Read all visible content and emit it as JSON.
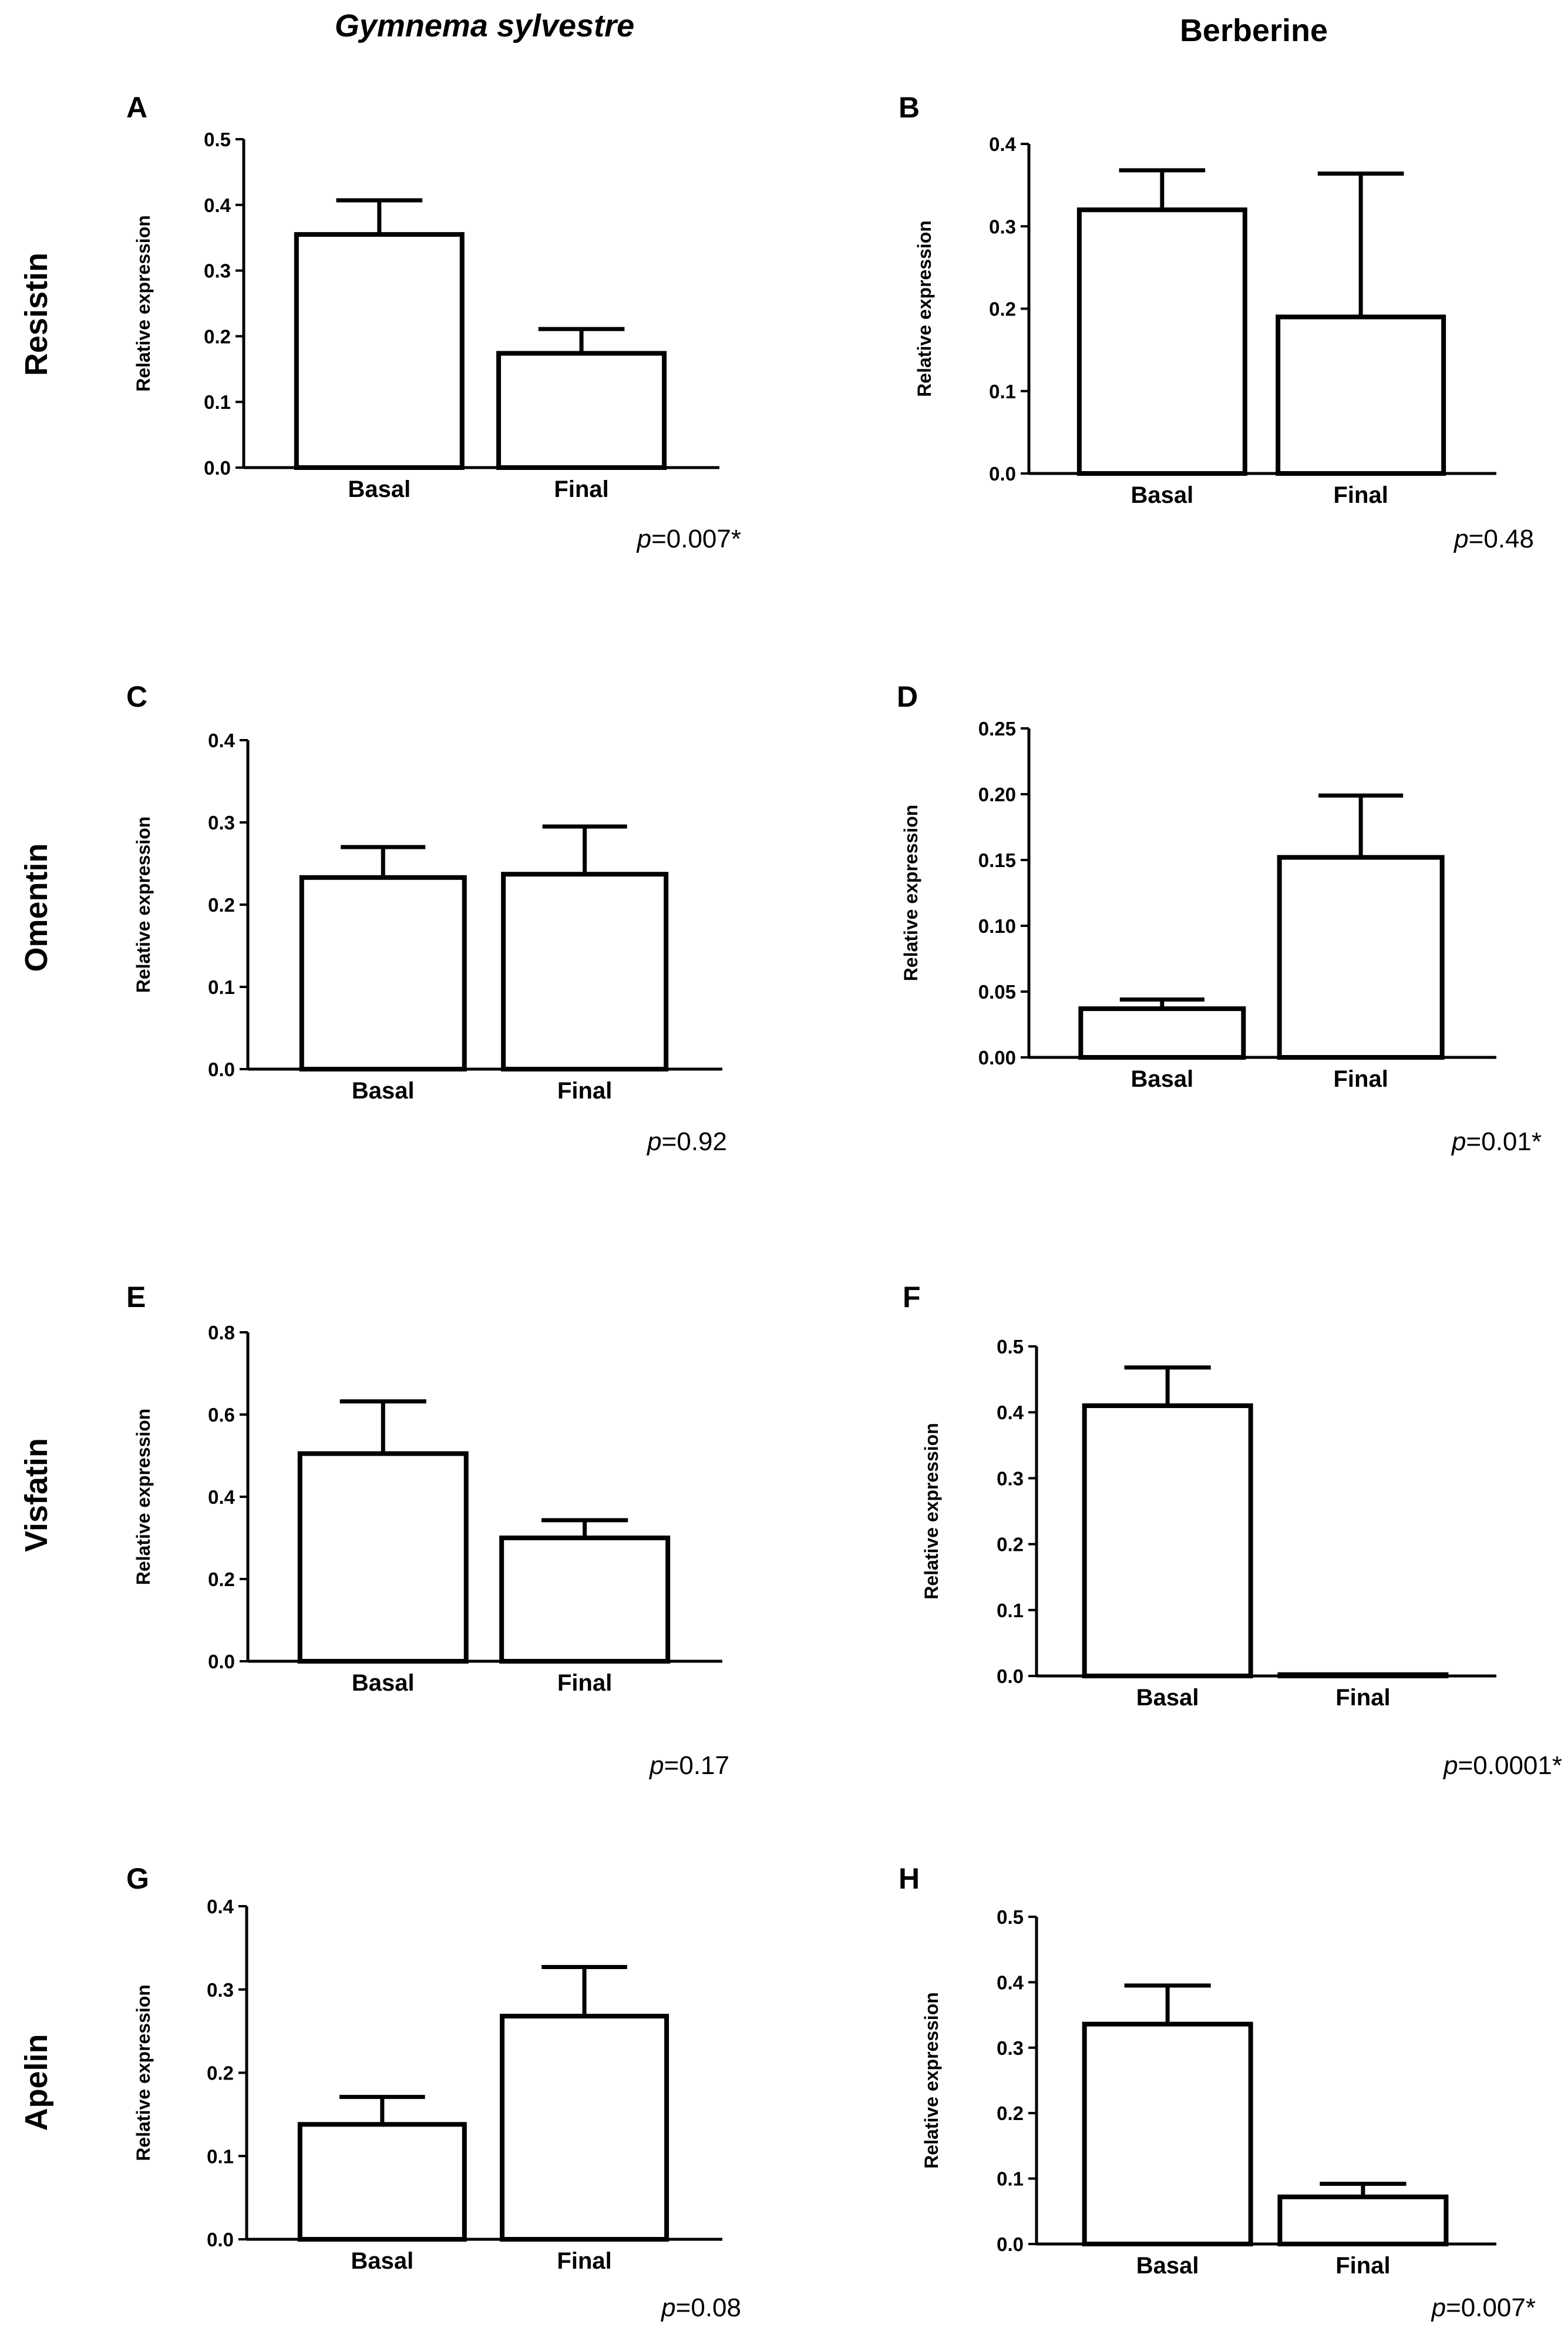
{
  "figure": {
    "column_titles": [
      "Gymnema sylvestre",
      "Berberine"
    ],
    "row_labels": [
      "Resistin",
      "Omentin",
      "Visfatin",
      "Apelin"
    ]
  },
  "chart_data": [
    {
      "panel": "A",
      "type": "bar",
      "marker": "Resistin",
      "treatment": "Gymnema sylvestre",
      "categories": [
        "Basal",
        "Final"
      ],
      "values": [
        0.355,
        0.174
      ],
      "errors": [
        0.052,
        0.037
      ],
      "ylabel": "Relative expression",
      "ylim": [
        0,
        0.5
      ],
      "yticks": [
        0.0,
        0.1,
        0.2,
        0.3,
        0.4,
        0.5
      ],
      "ytick_labels": [
        "0.0",
        "0.1",
        "0.2",
        "0.3",
        "0.4",
        "0.5"
      ],
      "p_label": "p",
      "p_rest": "=0.007*"
    },
    {
      "panel": "B",
      "type": "bar",
      "marker": "Resistin",
      "treatment": "Berberine",
      "categories": [
        "Basal",
        "Final"
      ],
      "values": [
        0.32,
        0.19
      ],
      "errors": [
        0.048,
        0.174
      ],
      "ylabel": "Relative expression",
      "ylim": [
        0,
        0.4
      ],
      "yticks": [
        0.0,
        0.1,
        0.2,
        0.3,
        0.4
      ],
      "ytick_labels": [
        "0.0",
        "0.1",
        "0.2",
        "0.3",
        "0.4"
      ],
      "p_label": "p",
      "p_rest": "=0.48"
    },
    {
      "panel": "C",
      "type": "bar",
      "marker": "Omentin",
      "treatment": "Gymnema sylvestre",
      "categories": [
        "Basal",
        "Final"
      ],
      "values": [
        0.233,
        0.237
      ],
      "errors": [
        0.037,
        0.058
      ],
      "ylabel": "Relative expression",
      "ylim": [
        0,
        0.4
      ],
      "yticks": [
        0.0,
        0.1,
        0.2,
        0.3,
        0.4
      ],
      "ytick_labels": [
        "0.0",
        "0.1",
        "0.2",
        "0.3",
        "0.4"
      ],
      "p_label": "p",
      "p_rest": "=0.92"
    },
    {
      "panel": "D",
      "type": "bar",
      "marker": "Omentin",
      "treatment": "Berberine",
      "categories": [
        "Basal",
        "Final"
      ],
      "values": [
        0.037,
        0.152
      ],
      "errors": [
        0.007,
        0.047
      ],
      "ylabel": "Relative expression",
      "ylim": [
        0,
        0.25
      ],
      "yticks": [
        0.0,
        0.05,
        0.1,
        0.15,
        0.2,
        0.25
      ],
      "ytick_labels": [
        "0.00",
        "0.05",
        "0.10",
        "0.15",
        "0.20",
        "0.25"
      ],
      "p_label": "p",
      "p_rest": "=0.01*"
    },
    {
      "panel": "E",
      "type": "bar",
      "marker": "Visfatin",
      "treatment": "Gymnema sylvestre",
      "categories": [
        "Basal",
        "Final"
      ],
      "values": [
        0.505,
        0.3
      ],
      "errors": [
        0.127,
        0.043
      ],
      "ylabel": "Relative expression",
      "ylim": [
        0,
        0.8
      ],
      "yticks": [
        0.0,
        0.2,
        0.4,
        0.6,
        0.8
      ],
      "ytick_labels": [
        "0.0",
        "0.2",
        "0.4",
        "0.6",
        "0.8"
      ],
      "p_label": "p",
      "p_rest": "=0.17"
    },
    {
      "panel": "F",
      "type": "bar",
      "marker": "Visfatin",
      "treatment": "Berberine",
      "categories": [
        "Basal",
        "Final"
      ],
      "values": [
        0.41,
        0.002
      ],
      "errors": [
        0.058,
        0.0
      ],
      "ylabel": "Relative expression",
      "ylim": [
        0,
        0.5
      ],
      "yticks": [
        0.0,
        0.1,
        0.2,
        0.3,
        0.4,
        0.5
      ],
      "ytick_labels": [
        "0.0",
        "0.1",
        "0.2",
        "0.3",
        "0.4",
        "0.5"
      ],
      "p_label": "p",
      "p_rest": "=0.0001*"
    },
    {
      "panel": "G",
      "type": "bar",
      "marker": "Apelin",
      "treatment": "Gymnema sylvestre",
      "categories": [
        "Basal",
        "Final"
      ],
      "values": [
        0.138,
        0.268
      ],
      "errors": [
        0.033,
        0.059
      ],
      "ylabel": "Relative expression",
      "ylim": [
        0,
        0.4
      ],
      "yticks": [
        0.0,
        0.1,
        0.2,
        0.3,
        0.4
      ],
      "ytick_labels": [
        "0.0",
        "0.1",
        "0.2",
        "0.3",
        "0.4"
      ],
      "p_label": "p",
      "p_rest": "=0.08"
    },
    {
      "panel": "H",
      "type": "bar",
      "marker": "Apelin",
      "treatment": "Berberine",
      "categories": [
        "Basal",
        "Final"
      ],
      "values": [
        0.336,
        0.072
      ],
      "errors": [
        0.059,
        0.02
      ],
      "ylabel": "Relative expression",
      "ylim": [
        0,
        0.5
      ],
      "yticks": [
        0.0,
        0.1,
        0.2,
        0.3,
        0.4,
        0.5
      ],
      "ytick_labels": [
        "0.0",
        "0.1",
        "0.2",
        "0.3",
        "0.4",
        "0.5"
      ],
      "p_label": "p",
      "p_rest": "=0.007*"
    }
  ]
}
